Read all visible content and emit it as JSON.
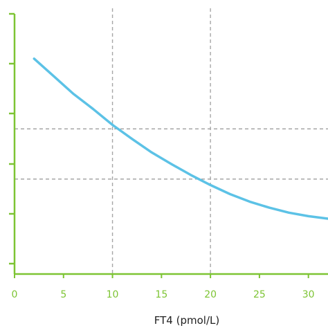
{
  "chart_data": {
    "type": "line",
    "title": "",
    "xlabel": "FT4 (pmol/L)",
    "ylabel": "",
    "xlim": [
      0,
      32
    ],
    "x_ticks": [
      0,
      5,
      10,
      15,
      20,
      25,
      30
    ],
    "x_tick_labels": [
      "0",
      "5",
      "10",
      "15",
      "20",
      "25",
      "30"
    ],
    "y_tick_count": 5,
    "y_tick_labels": [],
    "reference_lines": {
      "vertical_x": [
        10,
        20
      ],
      "horizontal_y": [
        2.7,
        1.7
      ]
    },
    "series": [
      {
        "x": [
          2,
          4,
          6,
          8,
          10,
          12,
          14,
          16,
          18,
          20,
          22,
          24,
          26,
          28,
          30,
          32
        ],
        "y": [
          4.1,
          3.75,
          3.4,
          3.1,
          2.78,
          2.5,
          2.23,
          2.0,
          1.78,
          1.58,
          1.4,
          1.25,
          1.13,
          1.03,
          0.96,
          0.91
        ]
      }
    ],
    "colors": {
      "axis": "#7dc433",
      "line": "#5cc2e6",
      "grid": "#a6a6a6"
    }
  }
}
